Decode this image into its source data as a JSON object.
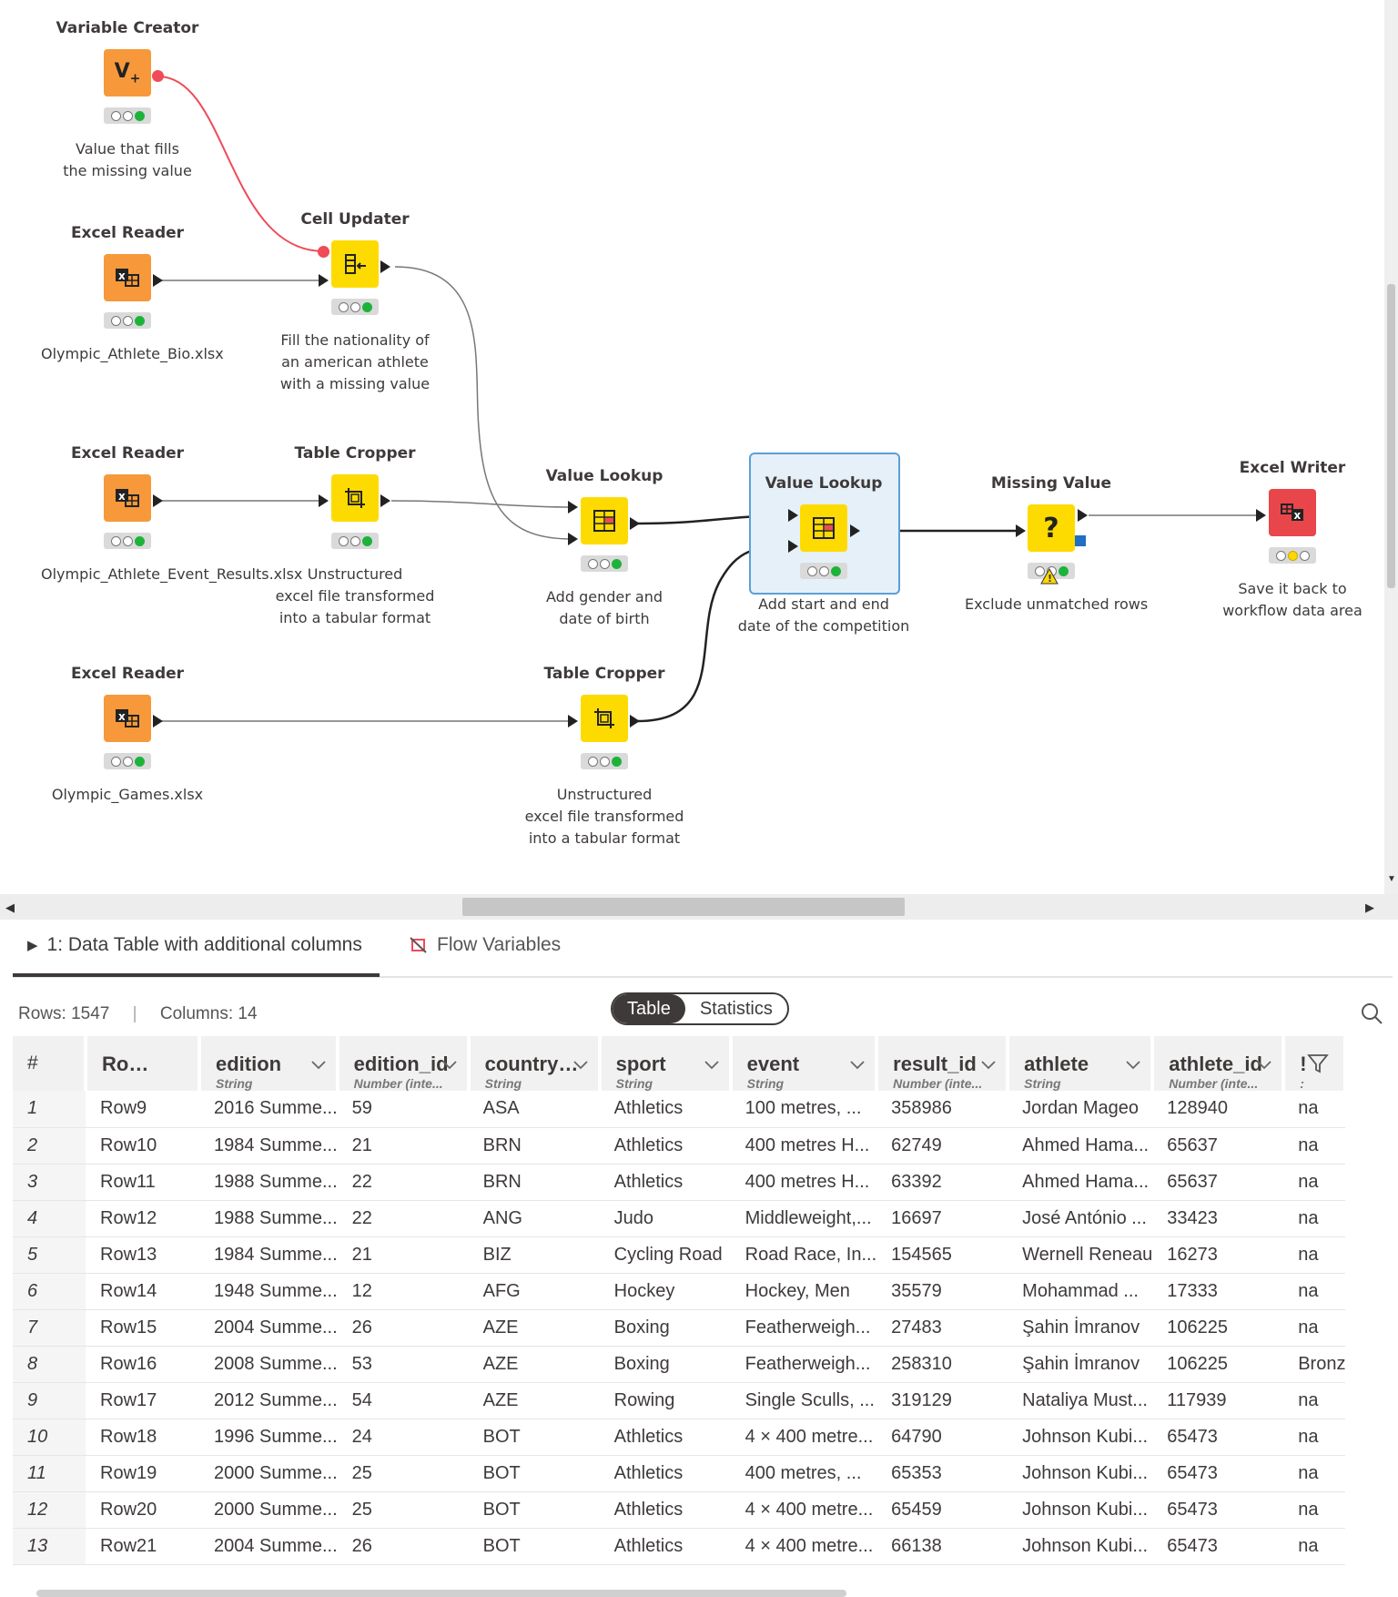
{
  "workflow": {
    "nodes": [
      {
        "id": "variable_creator",
        "title": "Variable Creator",
        "desc": [
          "Value that fills",
          "the missing value"
        ],
        "color": "orange",
        "icon": "variable-creator-icon",
        "status": "green"
      },
      {
        "id": "excel_reader_1",
        "title": "Excel Reader",
        "desc": [
          "Olympic_Athlete_Bio.xlsx"
        ],
        "color": "orange",
        "icon": "excel-reader-icon",
        "status": "green"
      },
      {
        "id": "cell_updater",
        "title": "Cell Updater",
        "desc": [
          "Fill the nationality of",
          "an american athlete",
          "with a missing value"
        ],
        "color": "yellow",
        "icon": "cell-updater-icon",
        "status": "green"
      },
      {
        "id": "excel_reader_2",
        "title": "Excel Reader",
        "desc": [
          "Olympic_Athlete_Event_Results.xlsx"
        ],
        "color": "orange",
        "icon": "excel-reader-icon",
        "status": "green"
      },
      {
        "id": "table_cropper_1",
        "title": "Table Cropper",
        "desc": [
          "Unstructured",
          "excel file transformed",
          "into a tabular format"
        ],
        "color": "yellow",
        "icon": "table-cropper-icon",
        "status": "green"
      },
      {
        "id": "value_lookup_1",
        "title": "Value Lookup",
        "desc": [
          "Add gender and",
          "date of birth"
        ],
        "color": "yellow",
        "icon": "value-lookup-icon",
        "status": "green"
      },
      {
        "id": "value_lookup_2",
        "title": "Value Lookup",
        "desc": [
          "Add start and end",
          "date of the competition"
        ],
        "color": "yellow",
        "icon": "value-lookup-icon",
        "status": "green"
      },
      {
        "id": "missing_value",
        "title": "Missing Value",
        "desc": [
          "Exclude unmatched rows"
        ],
        "color": "yellow",
        "icon": "missing-value-icon",
        "status": "green"
      },
      {
        "id": "excel_writer",
        "title": "Excel Writer",
        "desc": [
          "Save it back to",
          "workflow data area"
        ],
        "color": "red",
        "icon": "excel-writer-icon",
        "status": "yellow"
      },
      {
        "id": "excel_reader_3",
        "title": "Excel Reader",
        "desc": [
          "Olympic_Games.xlsx"
        ],
        "color": "orange",
        "icon": "excel-reader-icon",
        "status": "green"
      },
      {
        "id": "table_cropper_2",
        "title": "Table Cropper",
        "desc": [
          "Unstructured",
          "excel file transformed",
          "into a tabular format"
        ],
        "color": "yellow",
        "icon": "table-cropper-icon",
        "status": "green"
      }
    ]
  },
  "output_panel": {
    "tabs": [
      {
        "label": "1: Data Table with additional columns",
        "icon": "play-triangle-icon",
        "active": true
      },
      {
        "label": "Flow Variables",
        "icon": "flow-variables-icon",
        "active": false
      }
    ],
    "rows_label": "Rows: 1547",
    "separator": "|",
    "cols_label": "Columns: 14",
    "toggle": {
      "table": "Table",
      "statistics": "Statistics",
      "selected": "Table"
    },
    "table": {
      "index_header": "#",
      "columns": [
        {
          "name": "Row...",
          "type": ""
        },
        {
          "name": "edition",
          "type": "String"
        },
        {
          "name": "edition_id",
          "type": "Number (inte..."
        },
        {
          "name": "country_...",
          "type": "String"
        },
        {
          "name": "sport",
          "type": "String"
        },
        {
          "name": "event",
          "type": "String"
        },
        {
          "name": "result_id",
          "type": "Number (inte..."
        },
        {
          "name": "athlete",
          "type": "String"
        },
        {
          "name": "athlete_id",
          "type": "Number (inte..."
        },
        {
          "name": "!",
          "type": ":"
        }
      ],
      "rows": [
        [
          "1",
          "Row9",
          "2016 Summe...",
          "59",
          "ASA",
          "Athletics",
          "100 metres, ...",
          "358986",
          "Jordan Mageo",
          "128940",
          "na"
        ],
        [
          "2",
          "Row10",
          "1984 Summe...",
          "21",
          "BRN",
          "Athletics",
          "400 metres H...",
          "62749",
          "Ahmed Hama...",
          "65637",
          "na"
        ],
        [
          "3",
          "Row11",
          "1988 Summe...",
          "22",
          "BRN",
          "Athletics",
          "400 metres H...",
          "63392",
          "Ahmed Hama...",
          "65637",
          "na"
        ],
        [
          "4",
          "Row12",
          "1988 Summe...",
          "22",
          "ANG",
          "Judo",
          "Middleweight,...",
          "16697",
          "José António ...",
          "33423",
          "na"
        ],
        [
          "5",
          "Row13",
          "1984 Summe...",
          "21",
          "BIZ",
          "Cycling Road",
          "Road Race, In...",
          "154565",
          "Wernell Reneau",
          "16273",
          "na"
        ],
        [
          "6",
          "Row14",
          "1948 Summe...",
          "12",
          "AFG",
          "Hockey",
          "Hockey, Men",
          "35579",
          "Mohammad ...",
          "17333",
          "na"
        ],
        [
          "7",
          "Row15",
          "2004 Summe...",
          "26",
          "AZE",
          "Boxing",
          "Featherweigh...",
          "27483",
          "Şahin İmranov",
          "106225",
          "na"
        ],
        [
          "8",
          "Row16",
          "2008 Summe...",
          "53",
          "AZE",
          "Boxing",
          "Featherweigh...",
          "258310",
          "Şahin İmranov",
          "106225",
          "Bronz"
        ],
        [
          "9",
          "Row17",
          "2012 Summe...",
          "54",
          "AZE",
          "Rowing",
          "Single Sculls, ...",
          "319129",
          "Nataliya Must...",
          "117939",
          "na"
        ],
        [
          "10",
          "Row18",
          "1996 Summe...",
          "24",
          "BOT",
          "Athletics",
          "4 × 400 metre...",
          "64790",
          "Johnson Kubi...",
          "65473",
          "na"
        ],
        [
          "11",
          "Row19",
          "2000 Summe...",
          "25",
          "BOT",
          "Athletics",
          "400 metres, ...",
          "65353",
          "Johnson Kubi...",
          "65473",
          "na"
        ],
        [
          "12",
          "Row20",
          "2000 Summe...",
          "25",
          "BOT",
          "Athletics",
          "4 × 400 metre...",
          "65459",
          "Johnson Kubi...",
          "65473",
          "na"
        ],
        [
          "13",
          "Row21",
          "2004 Summe...",
          "26",
          "BOT",
          "Athletics",
          "4 × 400 metre...",
          "66138",
          "Johnson Kubi...",
          "65473",
          "na"
        ]
      ]
    }
  },
  "colors": {
    "orange": "#f7993a",
    "yellow": "#fedb00",
    "red": "#e9464b",
    "selection": "#5aa0d8",
    "flow": "#ef4b58"
  }
}
